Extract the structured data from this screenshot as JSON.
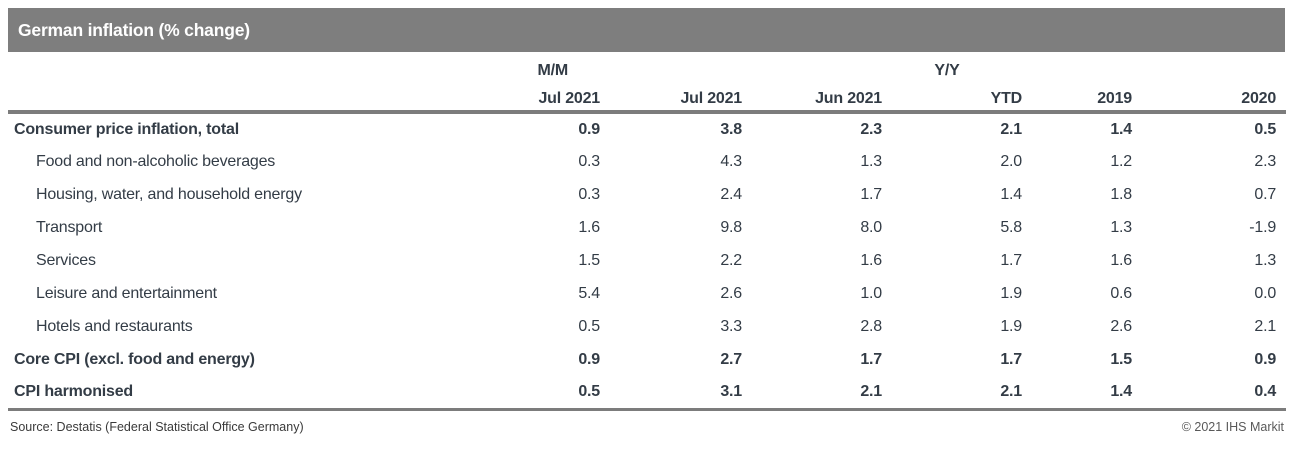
{
  "title": "German inflation (% change)",
  "colors": {
    "title_bar_bg": "#7e7e7e",
    "rule": "#7c7c7c",
    "text": "#333c46",
    "title_text": "#ffffff",
    "copyright_text": "#595959"
  },
  "chart_data": {
    "type": "table",
    "title": "German inflation (% change)",
    "column_groups": {
      "mm": "M/M",
      "yy": "Y/Y"
    },
    "columns": [
      "Jul 2021",
      "Jul 2021",
      "Jun 2021",
      "YTD",
      "2019",
      "2020"
    ],
    "rows": [
      {
        "label": "Consumer price inflation, total",
        "bold": true,
        "indent": false,
        "values": [
          "0.9",
          "3.8",
          "2.3",
          "2.1",
          "1.4",
          "0.5"
        ]
      },
      {
        "label": "Food and non-alcoholic beverages",
        "bold": false,
        "indent": true,
        "values": [
          "0.3",
          "4.3",
          "1.3",
          "2.0",
          "1.2",
          "2.3"
        ]
      },
      {
        "label": "Housing, water, and household energy",
        "bold": false,
        "indent": true,
        "values": [
          "0.3",
          "2.4",
          "1.7",
          "1.4",
          "1.8",
          "0.7"
        ]
      },
      {
        "label": "Transport",
        "bold": false,
        "indent": true,
        "values": [
          "1.6",
          "9.8",
          "8.0",
          "5.8",
          "1.3",
          "-1.9"
        ]
      },
      {
        "label": "Services",
        "bold": false,
        "indent": true,
        "values": [
          "1.5",
          "2.2",
          "1.6",
          "1.7",
          "1.6",
          "1.3"
        ]
      },
      {
        "label": "Leisure and entertainment",
        "bold": false,
        "indent": true,
        "values": [
          "5.4",
          "2.6",
          "1.0",
          "1.9",
          "0.6",
          "0.0"
        ]
      },
      {
        "label": "Hotels and restaurants",
        "bold": false,
        "indent": true,
        "values": [
          "0.5",
          "3.3",
          "2.8",
          "1.9",
          "2.6",
          "2.1"
        ]
      },
      {
        "label": "Core CPI (excl. food and energy)",
        "bold": true,
        "indent": false,
        "values": [
          "0.9",
          "2.7",
          "1.7",
          "1.7",
          "1.5",
          "0.9"
        ]
      },
      {
        "label": "CPI harmonised",
        "bold": true,
        "indent": false,
        "values": [
          "0.5",
          "3.1",
          "2.1",
          "2.1",
          "1.4",
          "0.4"
        ]
      }
    ]
  },
  "footer": {
    "source": "Source: Destatis (Federal Statistical Office Germany)",
    "copyright": "© 2021 IHS Markit"
  }
}
